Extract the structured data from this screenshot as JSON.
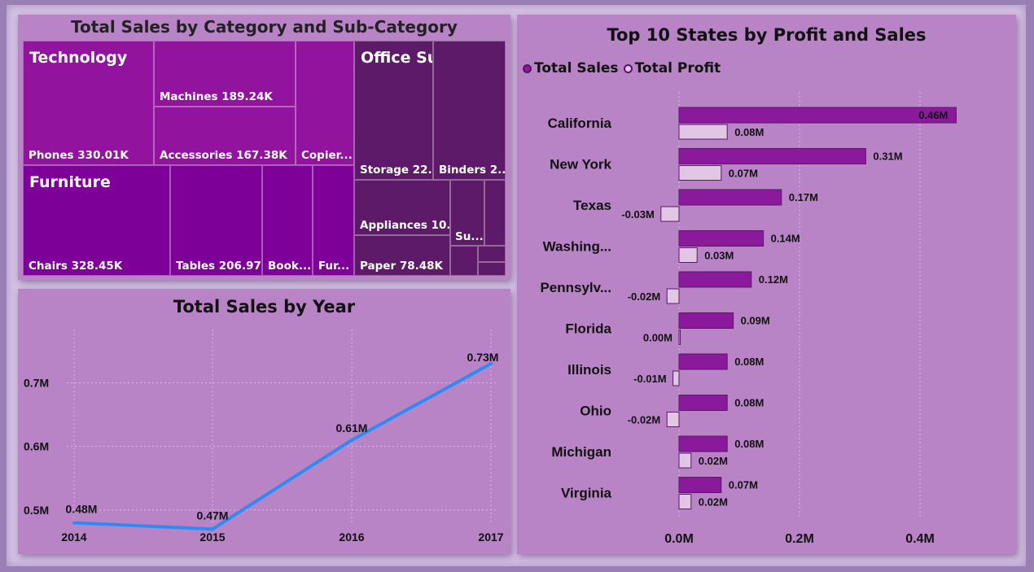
{
  "treemap": {
    "title": "Total Sales by Category and Sub-Category",
    "categories": [
      {
        "name": "Technology"
      },
      {
        "name": "Furniture"
      },
      {
        "name": "Office Supplies"
      }
    ],
    "labels": {
      "phones": "Phones 330.01K",
      "machines": "Machines 189.24K",
      "accessories": "Accessories 167.38K",
      "copiers": "Copier...",
      "chairs": "Chairs 328.45K",
      "tables": "Tables 206.97K",
      "bookcases": "Book...",
      "furnishings": "Fur...",
      "storage": "Storage 22...",
      "binders": "Binders 2...",
      "appliances": "Appliances 10...",
      "paper": "Paper 78.48K",
      "supplies": "Su..."
    },
    "colors": {
      "technology": "#91139e",
      "furniture": "#7d0198",
      "office": "#5c1a68"
    }
  },
  "line_chart": {
    "title": "Total Sales by Year",
    "chart_data": {
      "type": "line",
      "x": [
        "2014",
        "2015",
        "2016",
        "2017"
      ],
      "values": [
        0.48,
        0.47,
        0.61,
        0.73
      ],
      "data_labels": [
        "0.48M",
        "0.47M",
        "0.61M",
        "0.73M"
      ],
      "y_ticks": [
        "0.5M",
        "0.6M",
        "0.7M"
      ],
      "y_tick_values": [
        0.5,
        0.6,
        0.7
      ],
      "ylim": [
        0.45,
        0.75
      ],
      "grid": true,
      "color": "#2b8cf6"
    }
  },
  "bar_chart": {
    "title": "Top 10 States by Profit and Sales",
    "legend": [
      {
        "label": "Total Sales",
        "color": "#8a1a9b"
      },
      {
        "label": "Total Profit",
        "color": "#e2c7e4"
      }
    ],
    "chart_data": {
      "type": "bar",
      "orientation": "horizontal",
      "categories": [
        "California",
        "New York",
        "Texas",
        "Washing...",
        "Pennsylv...",
        "Florida",
        "Illinois",
        "Ohio",
        "Michigan",
        "Virginia"
      ],
      "series": [
        {
          "name": "Total Sales",
          "values": [
            0.46,
            0.31,
            0.17,
            0.14,
            0.12,
            0.09,
            0.08,
            0.08,
            0.08,
            0.07
          ],
          "labels": [
            "0.46M",
            "0.31M",
            "0.17M",
            "0.14M",
            "0.12M",
            "0.09M",
            "0.08M",
            "0.08M",
            "0.08M",
            "0.07M"
          ]
        },
        {
          "name": "Total Profit",
          "values": [
            0.08,
            0.07,
            -0.03,
            0.03,
            -0.02,
            0.0,
            -0.01,
            -0.02,
            0.02,
            0.02
          ],
          "labels": [
            "0.08M",
            "0.07M",
            "-0.03M",
            "0.03M",
            "-0.02M",
            "0.00M",
            "-0.01M",
            "-0.02M",
            "0.02M",
            "0.02M"
          ]
        }
      ],
      "x_ticks": [
        "0.0M",
        "0.2M",
        "0.4M"
      ],
      "x_tick_values": [
        0.0,
        0.2,
        0.4
      ],
      "grid": true
    }
  }
}
